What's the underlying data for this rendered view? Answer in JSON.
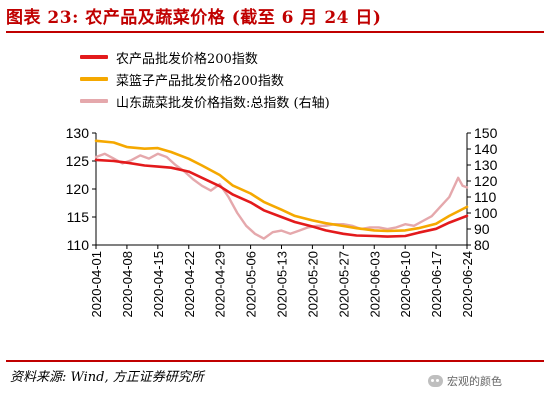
{
  "title": "图表 23:   农产品及蔬菜价格 (截至 6 月 24 日)",
  "source": "资料来源: Wind, 方正证券研究所",
  "watermark": "宏观的颜色",
  "colors": {
    "accent": "#c00000",
    "series1": "#e31a1c",
    "series2": "#f5a800",
    "series3": "#e5a8ac"
  },
  "chart_data": {
    "type": "line",
    "title": "图表 23:   农产品及蔬菜价格 (截至 6 月 24 日)",
    "xlabel": "",
    "ylabel": "",
    "x_ticks": [
      "2020-04-01",
      "2020-04-08",
      "2020-04-15",
      "2020-04-22",
      "2020-04-29",
      "2020-05-06",
      "2020-05-13",
      "2020-05-20",
      "2020-05-27",
      "2020-06-03",
      "2020-06-10",
      "2020-06-17",
      "2020-06-24"
    ],
    "ylim_left": [
      110,
      130
    ],
    "yticks_left": [
      110,
      115,
      120,
      125,
      130
    ],
    "ylim_right": [
      80,
      150
    ],
    "yticks_right": [
      80,
      90,
      100,
      110,
      120,
      130,
      140,
      150
    ],
    "grid": false,
    "legend_position": "top-left",
    "series": [
      {
        "name": "农产品批发价格200指数",
        "axis": "left",
        "points": [
          [
            "2020-04-01",
            125.2
          ],
          [
            "2020-04-05",
            125.0
          ],
          [
            "2020-04-08",
            124.7
          ],
          [
            "2020-04-12",
            124.2
          ],
          [
            "2020-04-15",
            124.0
          ],
          [
            "2020-04-18",
            123.8
          ],
          [
            "2020-04-22",
            123.1
          ],
          [
            "2020-04-25",
            122.0
          ],
          [
            "2020-04-29",
            120.5
          ],
          [
            "2020-05-02",
            119.0
          ],
          [
            "2020-05-06",
            117.6
          ],
          [
            "2020-05-09",
            116.2
          ],
          [
            "2020-05-13",
            115.0
          ],
          [
            "2020-05-16",
            114.1
          ],
          [
            "2020-05-20",
            113.3
          ],
          [
            "2020-05-23",
            112.6
          ],
          [
            "2020-05-27",
            112.0
          ],
          [
            "2020-05-30",
            111.7
          ],
          [
            "2020-06-03",
            111.6
          ],
          [
            "2020-06-06",
            111.5
          ],
          [
            "2020-06-10",
            111.6
          ],
          [
            "2020-06-13",
            112.2
          ],
          [
            "2020-06-17",
            112.9
          ],
          [
            "2020-06-20",
            114.0
          ],
          [
            "2020-06-24",
            115.2
          ]
        ]
      },
      {
        "name": "菜篮子产品批发价格200指数",
        "axis": "left",
        "points": [
          [
            "2020-04-01",
            128.6
          ],
          [
            "2020-04-05",
            128.3
          ],
          [
            "2020-04-08",
            127.5
          ],
          [
            "2020-04-12",
            127.2
          ],
          [
            "2020-04-15",
            127.3
          ],
          [
            "2020-04-18",
            126.6
          ],
          [
            "2020-04-22",
            125.4
          ],
          [
            "2020-04-25",
            124.2
          ],
          [
            "2020-04-29",
            122.5
          ],
          [
            "2020-05-02",
            120.6
          ],
          [
            "2020-05-06",
            119.2
          ],
          [
            "2020-05-09",
            117.7
          ],
          [
            "2020-05-13",
            116.3
          ],
          [
            "2020-05-16",
            115.2
          ],
          [
            "2020-05-20",
            114.4
          ],
          [
            "2020-05-23",
            113.9
          ],
          [
            "2020-05-27",
            113.4
          ],
          [
            "2020-05-30",
            113.0
          ],
          [
            "2020-06-03",
            112.6
          ],
          [
            "2020-06-06",
            112.5
          ],
          [
            "2020-06-10",
            112.6
          ],
          [
            "2020-06-13",
            113.0
          ],
          [
            "2020-06-17",
            113.8
          ],
          [
            "2020-06-20",
            115.2
          ],
          [
            "2020-06-24",
            116.8
          ]
        ]
      },
      {
        "name": "山东蔬菜批发价格指数:总指数 (右轴)",
        "axis": "right",
        "points": [
          [
            "2020-04-01",
            135
          ],
          [
            "2020-04-03",
            137
          ],
          [
            "2020-04-05",
            134
          ],
          [
            "2020-04-07",
            131
          ],
          [
            "2020-04-09",
            133
          ],
          [
            "2020-04-11",
            136
          ],
          [
            "2020-04-13",
            134
          ],
          [
            "2020-04-15",
            137
          ],
          [
            "2020-04-17",
            135
          ],
          [
            "2020-04-19",
            130
          ],
          [
            "2020-04-21",
            126
          ],
          [
            "2020-04-23",
            121
          ],
          [
            "2020-04-25",
            117
          ],
          [
            "2020-04-27",
            114
          ],
          [
            "2020-04-29",
            118
          ],
          [
            "2020-05-01",
            110
          ],
          [
            "2020-05-03",
            100
          ],
          [
            "2020-05-05",
            92
          ],
          [
            "2020-05-07",
            87
          ],
          [
            "2020-05-09",
            84
          ],
          [
            "2020-05-11",
            88
          ],
          [
            "2020-05-13",
            89
          ],
          [
            "2020-05-15",
            87
          ],
          [
            "2020-05-17",
            89
          ],
          [
            "2020-05-19",
            91
          ],
          [
            "2020-05-21",
            92
          ],
          [
            "2020-05-23",
            92
          ],
          [
            "2020-05-25",
            93
          ],
          [
            "2020-05-27",
            93
          ],
          [
            "2020-05-29",
            92
          ],
          [
            "2020-05-31",
            90
          ],
          [
            "2020-06-02",
            91
          ],
          [
            "2020-06-04",
            91
          ],
          [
            "2020-06-06",
            90
          ],
          [
            "2020-06-08",
            91
          ],
          [
            "2020-06-10",
            93
          ],
          [
            "2020-06-12",
            92
          ],
          [
            "2020-06-14",
            95
          ],
          [
            "2020-06-16",
            98
          ],
          [
            "2020-06-18",
            104
          ],
          [
            "2020-06-20",
            110
          ],
          [
            "2020-06-22",
            122
          ],
          [
            "2020-06-23",
            117
          ],
          [
            "2020-06-24",
            116
          ]
        ]
      }
    ]
  }
}
